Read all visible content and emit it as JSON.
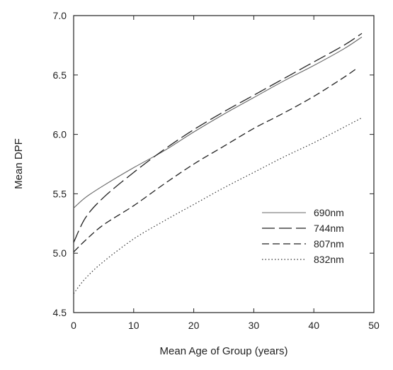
{
  "chart_data": {
    "type": "line",
    "xlabel": "Mean Age of Group (years)",
    "ylabel": "Mean DPF",
    "xlim": [
      0,
      50
    ],
    "ylim": [
      4.5,
      7.0
    ],
    "xticks": [
      0,
      10,
      20,
      30,
      40,
      50
    ],
    "yticks": [
      4.5,
      5.0,
      5.5,
      6.0,
      6.5,
      7.0
    ],
    "xtick_labels": [
      "0",
      "10",
      "20",
      "30",
      "40",
      "50"
    ],
    "ytick_labels": [
      "4.5",
      "5.0",
      "5.5",
      "6.0",
      "6.5",
      "7.0"
    ],
    "grid": false,
    "legend_position": "right",
    "series": [
      {
        "name": "690nm",
        "style": "solid",
        "x": [
          0,
          2,
          5,
          10,
          15,
          20,
          25,
          30,
          35,
          40,
          45,
          48
        ],
        "y": [
          5.38,
          5.47,
          5.57,
          5.72,
          5.86,
          6.02,
          6.17,
          6.31,
          6.45,
          6.58,
          6.72,
          6.82
        ]
      },
      {
        "name": "744nm",
        "style": "long-dash",
        "x": [
          0,
          2,
          5,
          10,
          15,
          20,
          25,
          30,
          35,
          40,
          45,
          48
        ],
        "y": [
          5.09,
          5.3,
          5.47,
          5.68,
          5.87,
          6.04,
          6.19,
          6.33,
          6.47,
          6.61,
          6.75,
          6.85
        ]
      },
      {
        "name": "807nm",
        "style": "dash",
        "x": [
          0,
          2,
          5,
          10,
          15,
          20,
          25,
          30,
          35,
          40,
          45,
          47
        ],
        "y": [
          5.01,
          5.11,
          5.24,
          5.4,
          5.58,
          5.75,
          5.9,
          6.05,
          6.18,
          6.32,
          6.48,
          6.55
        ]
      },
      {
        "name": "832nm",
        "style": "dotted",
        "x": [
          0,
          2,
          5,
          10,
          15,
          20,
          25,
          30,
          35,
          40,
          45,
          48
        ],
        "y": [
          4.66,
          4.79,
          4.93,
          5.12,
          5.27,
          5.41,
          5.55,
          5.68,
          5.81,
          5.93,
          6.06,
          6.14
        ]
      }
    ]
  }
}
